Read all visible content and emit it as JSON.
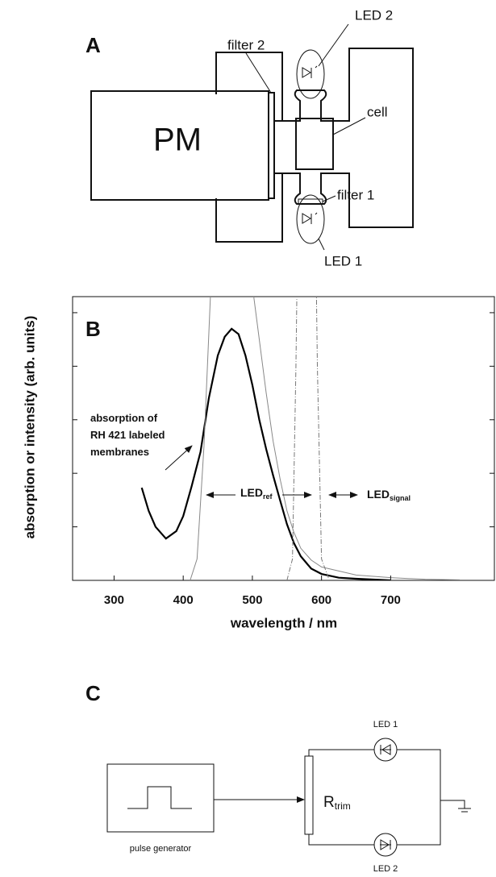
{
  "panel_a": {
    "label": "A",
    "pm": "PM",
    "filter2": "filter 2",
    "cell": "cell",
    "filter1": "filter 1",
    "led2": "LED 2",
    "led1": "LED 1"
  },
  "chart_data": {
    "type": "line",
    "panel_label": "B",
    "xlabel": "wavelength / nm",
    "ylabel": "absorption or intensity (arb. units)",
    "xlim": [
      240,
      850
    ],
    "xticks": [
      300,
      400,
      500,
      600,
      700
    ],
    "ylim": [
      0,
      5.3
    ],
    "yticks": [
      1,
      2,
      3,
      4,
      5
    ],
    "series": [
      {
        "color": "#000000",
        "width": 2.2,
        "dash": "none",
        "x": [
          340,
          350,
          360,
          375,
          390,
          400,
          412,
          425,
          437,
          450,
          460,
          470,
          480,
          490,
          500,
          510,
          520,
          530,
          540,
          550,
          560,
          570,
          585,
          600,
          625,
          650,
          700
        ],
        "values": [
          1.73,
          1.3,
          1.0,
          0.78,
          0.92,
          1.2,
          1.75,
          2.4,
          3.4,
          4.2,
          4.55,
          4.7,
          4.6,
          4.2,
          3.65,
          3.0,
          2.45,
          1.96,
          1.5,
          1.05,
          0.7,
          0.45,
          0.22,
          0.12,
          0.05,
          0.03,
          0.0
        ]
      },
      {
        "color": "#888888",
        "width": 1,
        "dash": "none",
        "x": [
          410,
          420,
          430,
          440,
          500,
          510,
          520,
          530,
          540,
          550,
          560,
          570,
          585,
          600,
          650,
          700,
          750,
          800
        ],
        "values": [
          0.0,
          0.4,
          2.5,
          5.5,
          5.5,
          4.5,
          3.5,
          2.6,
          1.9,
          1.3,
          0.9,
          0.6,
          0.38,
          0.25,
          0.1,
          0.05,
          0.02,
          0.01
        ]
      },
      {
        "color": "#777777",
        "width": 1,
        "dash": "6 2 1 2",
        "x": [
          550,
          558,
          563,
          565,
          592,
          594,
          600,
          610
        ],
        "values": [
          0.0,
          0.4,
          4.0,
          6.0,
          6.0,
          4.0,
          0.4,
          0.05
        ]
      }
    ],
    "annotations": [
      {
        "lines": [
          "absorption of",
          "RH 421 labeled",
          "membranes"
        ]
      },
      {
        "text": "LED",
        "sub": "ref"
      },
      {
        "text": "LED",
        "sub": "signal"
      }
    ]
  },
  "panel_c": {
    "label": "C",
    "led1": "LED 1",
    "r": "R",
    "r_sub": "trim",
    "pulse_generator": "pulse generator",
    "led2": "LED 2"
  }
}
